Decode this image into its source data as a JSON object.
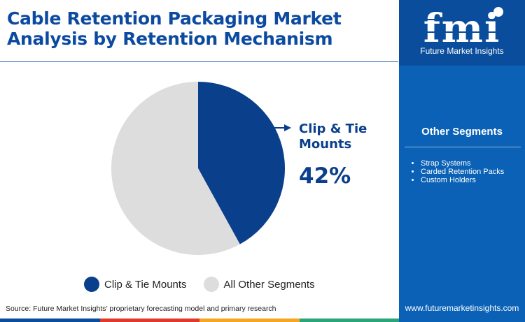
{
  "title": "Cable Retention Packaging Market Analysis by Retention Mechanism",
  "callout": {
    "label": "Clip & Tie Mounts",
    "value": "42%"
  },
  "chart_data": {
    "type": "pie",
    "title": "Cable Retention Packaging Market Analysis by Retention Mechanism",
    "slices": [
      {
        "label": "Clip & Tie Mounts",
        "value": 42,
        "color": "#0a3f8c"
      },
      {
        "label": "All Other Segments",
        "value": 58,
        "color": "#dddddd"
      }
    ],
    "legend_position": "bottom"
  },
  "legend": [
    {
      "label": "Clip & Tie Mounts",
      "color": "#0a3f8c"
    },
    {
      "label": "All Other Segments",
      "color": "#dddddd"
    }
  ],
  "source": "Source: Future Market Insights’ proprietary forecasting model and primary research",
  "sidebar": {
    "logo_text": "fmi",
    "logo_caption": "Future Market Insights",
    "heading": "Other Segments",
    "items": [
      "Strap Systems",
      "Carded Retention Packs",
      "Custom Holders"
    ],
    "website": "www.futuremarketinsights.com"
  },
  "colors": {
    "title": "#0b4aa0",
    "accent": "#0a3f8c",
    "sidebar": "#0a61b5",
    "sidebar_top": "#0a4d9c",
    "bottom_bar": [
      "#0a4d9c",
      "#e0382c",
      "#f5a623",
      "#2aa57a"
    ]
  }
}
